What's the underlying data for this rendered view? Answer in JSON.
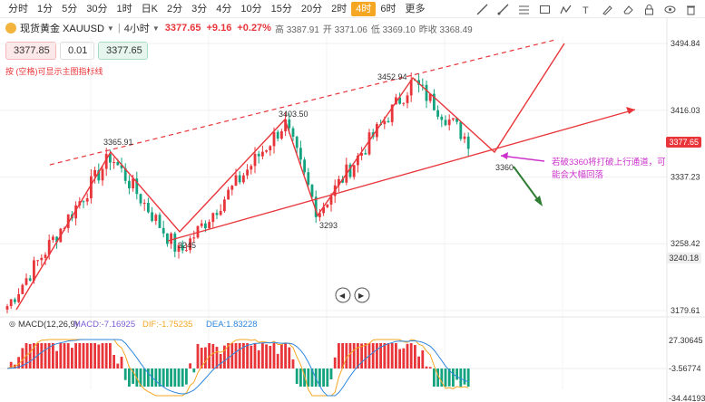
{
  "timeframes": [
    "分时",
    "1分",
    "5分",
    "30分",
    "1时",
    "日K",
    "2分",
    "3分",
    "4分",
    "10分",
    "15分",
    "20分",
    "2时",
    "4时",
    "6时",
    "更多"
  ],
  "active_timeframe_index": 13,
  "info": {
    "symbol": "现货黄金 XAUUSD",
    "interval": "4小时",
    "price": "3377.65",
    "change": "+9.16",
    "change_pct": "+0.27%",
    "high": "高 3387.91",
    "open": "开 3371.06",
    "low": "低 3369.10",
    "prev_close": "昨收 3368.49"
  },
  "trade": {
    "sell": "3377.85",
    "qty": "0.01",
    "buy": "3377.65"
  },
  "note": "按 (空格)可显示主图指标线",
  "price_axis": [
    "3494.84",
    "3416.03",
    "3337.23",
    "3258.42",
    "3179.61"
  ],
  "price_tags": [
    {
      "text": "3377.65",
      "price": 3377.65,
      "bg": "#e8353a",
      "color": "#ffffff"
    },
    {
      "text": "3240.18",
      "price": 3240.18,
      "bg": "#eeeeee",
      "color": "#333333"
    }
  ],
  "macd": {
    "label": "MACD(12,26,9)",
    "macd_value": "MACD:-7.16925",
    "dif_value": "DIF:-1.75235",
    "dea_value": "DEA:1.83228",
    "axis": [
      "27.30645",
      "-3.56774",
      "-34.44193"
    ]
  },
  "chart_data": {
    "type": "candlestick",
    "annotations": [
      {
        "text": "3365.91",
        "price": 3365.91
      },
      {
        "text": "3245",
        "price": 3245
      },
      {
        "text": "3403.50",
        "price": 3403.5
      },
      {
        "text": "3293",
        "price": 3293
      },
      {
        "text": "3452.94",
        "price": 3452.94
      },
      {
        "text": "3360",
        "price": 3360
      }
    ],
    "callout": "若破3360将打破上行通道，可能会大幅回落",
    "price_range": [
      3170,
      3500
    ]
  },
  "colors": {
    "up": "#e8353a",
    "down": "#14a37f",
    "accent": "#f5a623",
    "callout": "#cc33cc",
    "arrow_down": "#2e7d32"
  }
}
